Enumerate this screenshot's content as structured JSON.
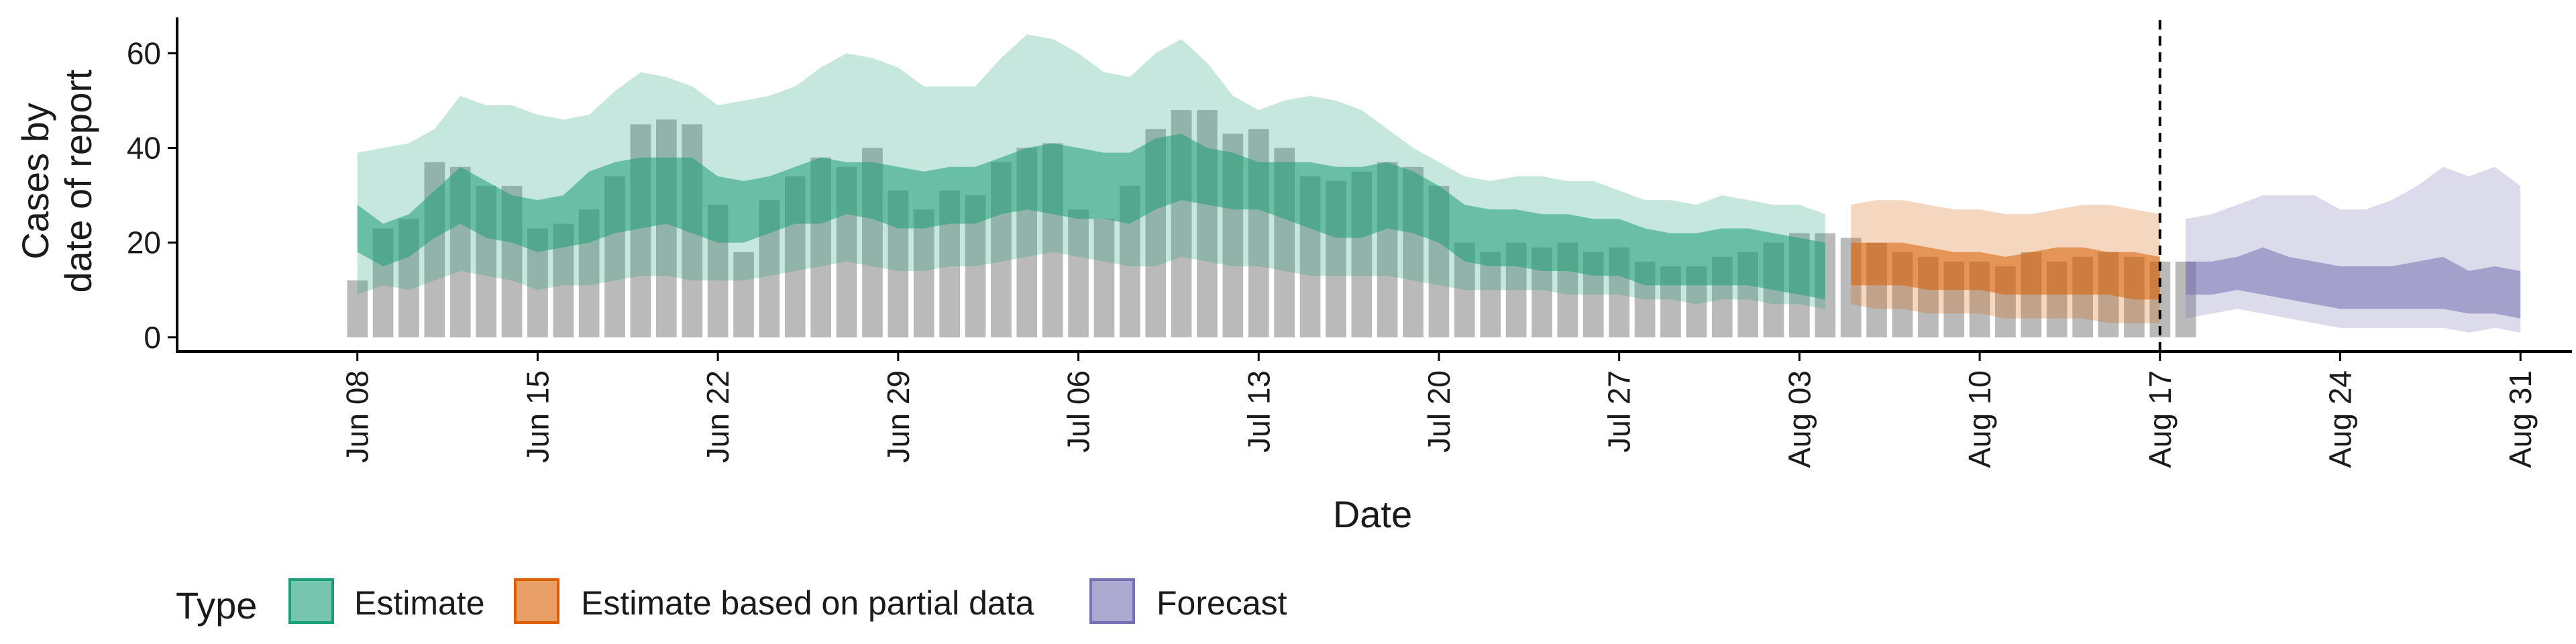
{
  "chart_data": {
    "type": "area",
    "xlabel": "Date",
    "ylabel_lines": [
      "Cases by",
      "date of report"
    ],
    "ylim": [
      -3,
      67
    ],
    "yticks": [
      0,
      20,
      40,
      60
    ],
    "x_start": "2020-06-08",
    "xlim_dates": [
      "2020-06-01",
      "2020-09-02"
    ],
    "xtick_dates": [
      "2020-06-08",
      "2020-06-15",
      "2020-06-22",
      "2020-06-29",
      "2020-07-06",
      "2020-07-13",
      "2020-07-20",
      "2020-07-27",
      "2020-08-03",
      "2020-08-10",
      "2020-08-17",
      "2020-08-24",
      "2020-08-31"
    ],
    "xtick_labels": [
      "Jun 08",
      "Jun 15",
      "Jun 22",
      "Jun 29",
      "Jul 06",
      "Jul 13",
      "Jul 20",
      "Jul 27",
      "Aug 03",
      "Aug 10",
      "Aug 17",
      "Aug 24",
      "Aug 31"
    ],
    "vline_date": "2020-08-17",
    "bars": {
      "color": "#b3b3b3",
      "values": [
        12,
        23,
        25,
        37,
        36,
        32,
        32,
        23,
        24,
        27,
        34,
        45,
        46,
        45,
        28,
        18,
        29,
        34,
        38,
        36,
        40,
        31,
        27,
        31,
        30,
        37,
        40,
        41,
        27,
        25,
        32,
        44,
        48,
        48,
        43,
        44,
        40,
        34,
        33,
        35,
        37,
        36,
        32,
        20,
        18,
        20,
        19,
        20,
        18,
        19,
        16,
        15,
        15,
        17,
        18,
        20,
        22,
        22,
        21,
        20,
        18,
        17,
        16,
        16,
        15,
        18,
        16,
        17,
        18,
        17,
        16,
        16
      ]
    },
    "series": [
      {
        "name": "Estimate",
        "color": "#1b9e77",
        "x": [
          0,
          1,
          2,
          3,
          4,
          5,
          6,
          7,
          8,
          9,
          10,
          11,
          12,
          13,
          14,
          15,
          16,
          17,
          18,
          19,
          20,
          21,
          22,
          23,
          24,
          25,
          26,
          27,
          28,
          29,
          30,
          31,
          32,
          33,
          34,
          35,
          36,
          37,
          38,
          39,
          40,
          41,
          42,
          43,
          44,
          45,
          46,
          47,
          48,
          49,
          50,
          51,
          52,
          53,
          54,
          55,
          56,
          57
        ],
        "lo90": [
          9,
          11,
          10,
          12,
          14,
          13,
          12,
          10,
          11,
          11,
          12,
          13,
          13,
          12,
          12,
          12,
          13,
          14,
          15,
          16,
          15,
          14,
          14,
          15,
          15,
          16,
          17,
          18,
          17,
          16,
          15,
          15,
          17,
          16,
          15,
          15,
          14,
          13,
          13,
          13,
          13,
          12,
          11,
          10,
          10,
          10,
          10,
          9,
          9,
          9,
          8,
          8,
          7,
          8,
          8,
          7,
          7,
          6
        ],
        "lo50": [
          18,
          15,
          17,
          21,
          24,
          21,
          20,
          18,
          19,
          20,
          22,
          23,
          24,
          22,
          20,
          20,
          22,
          24,
          24,
          26,
          25,
          23,
          23,
          24,
          24,
          26,
          27,
          26,
          25,
          25,
          24,
          27,
          29,
          28,
          27,
          27,
          25,
          23,
          21,
          21,
          23,
          22,
          20,
          16,
          15,
          15,
          14,
          14,
          13,
          13,
          11,
          11,
          11,
          11,
          11,
          10,
          9,
          8
        ],
        "hi50": [
          28,
          24,
          26,
          31,
          36,
          33,
          30,
          29,
          30,
          35,
          37,
          38,
          38,
          38,
          34,
          33,
          34,
          36,
          38,
          37,
          37,
          36,
          35,
          36,
          36,
          38,
          40,
          41,
          40,
          39,
          39,
          42,
          43,
          40,
          39,
          37,
          37,
          37,
          36,
          36,
          37,
          35,
          32,
          28,
          27,
          27,
          26,
          26,
          25,
          25,
          23,
          22,
          22,
          23,
          23,
          22,
          21,
          20
        ],
        "hi90": [
          39,
          40,
          41,
          44,
          51,
          49,
          49,
          47,
          46,
          47,
          52,
          56,
          55,
          53,
          49,
          50,
          51,
          53,
          57,
          60,
          59,
          57,
          53,
          53,
          53,
          59,
          64,
          63,
          60,
          56,
          55,
          60,
          63,
          58,
          51,
          48,
          50,
          51,
          50,
          48,
          44,
          40,
          37,
          34,
          33,
          34,
          34,
          33,
          33,
          31,
          29,
          29,
          28,
          30,
          29,
          28,
          28,
          26
        ]
      },
      {
        "name": "Estimate based on partial data",
        "color": "#d95f02",
        "x": [
          58,
          59,
          60,
          61,
          62,
          63,
          64,
          65,
          66,
          67,
          68,
          69,
          70
        ],
        "lo90": [
          7,
          6,
          6,
          5,
          5,
          5,
          4,
          4,
          4,
          4,
          3,
          3,
          3
        ],
        "lo50": [
          11,
          11,
          11,
          10,
          10,
          10,
          9,
          9,
          9,
          9,
          9,
          8,
          8
        ],
        "hi50": [
          20,
          20,
          20,
          19,
          18,
          18,
          17,
          18,
          19,
          19,
          18,
          18,
          17
        ],
        "hi90": [
          28,
          29,
          29,
          28,
          27,
          27,
          26,
          26,
          27,
          28,
          28,
          27,
          26
        ]
      },
      {
        "name": "Forecast",
        "color": "#7570b3",
        "x": [
          71,
          72,
          73,
          74,
          75,
          76,
          77,
          78,
          79,
          80,
          81,
          82,
          83,
          84
        ],
        "lo90": [
          4,
          5,
          6,
          5,
          4,
          3,
          2,
          2,
          2,
          2,
          2,
          1,
          2,
          1
        ],
        "lo50": [
          9,
          9,
          10,
          9,
          8,
          7,
          6,
          6,
          6,
          6,
          6,
          5,
          5,
          4
        ],
        "hi50": [
          16,
          16,
          17,
          19,
          17,
          16,
          15,
          15,
          15,
          16,
          17,
          14,
          15,
          14
        ],
        "hi90": [
          25,
          26,
          28,
          30,
          30,
          30,
          27,
          27,
          29,
          32,
          36,
          34,
          36,
          32
        ]
      }
    ],
    "legend": {
      "title": "Type",
      "position": "bottom-left",
      "items": [
        "Estimate",
        "Estimate based on partial data",
        "Forecast"
      ]
    }
  }
}
